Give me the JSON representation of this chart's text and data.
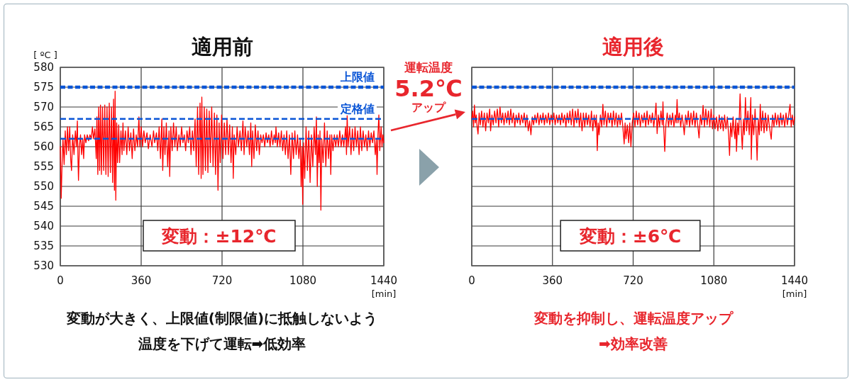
{
  "chart_data": [
    {
      "type": "line",
      "title": "適用前",
      "ylabel": "[ ºC ]",
      "xlabel": "[min]",
      "xlim": [
        0,
        1440
      ],
      "xticks": [
        0,
        360,
        720,
        1080,
        1440
      ],
      "ylim": [
        530,
        580
      ],
      "yticks": [
        530,
        535,
        540,
        545,
        550,
        555,
        560,
        565,
        570,
        575,
        580
      ],
      "grid": true,
      "color": "#ff0000",
      "x": [
        0,
        4,
        8,
        12,
        17,
        22,
        27,
        32,
        37,
        42,
        46,
        50,
        55,
        61,
        67,
        72,
        76,
        79,
        81,
        85,
        90,
        95,
        100,
        104,
        108,
        114,
        120,
        126,
        132,
        138,
        143,
        148,
        154,
        160,
        163,
        167,
        171,
        175,
        179,
        183,
        188,
        193,
        198,
        203,
        208,
        213,
        218,
        223,
        228,
        233,
        237,
        241,
        244,
        247,
        251,
        255,
        260,
        264,
        270,
        275,
        279,
        283,
        290,
        296,
        302,
        308,
        314,
        320,
        326,
        332,
        338,
        344,
        350,
        354,
        360,
        366,
        372,
        378,
        386,
        392,
        400,
        408,
        415,
        420,
        428,
        434,
        440,
        446,
        452,
        456,
        461,
        466,
        472,
        478,
        484,
        487,
        492,
        498,
        504,
        510,
        516,
        521,
        528,
        534,
        540,
        546,
        552,
        558,
        564,
        570,
        576,
        582,
        588,
        594,
        600,
        605,
        611,
        616,
        622,
        627,
        630,
        635,
        641,
        646,
        652,
        657,
        663,
        668,
        674,
        680,
        686,
        691,
        697,
        702,
        707,
        712,
        718,
        724,
        730,
        736,
        742,
        748,
        754,
        760,
        766,
        770,
        774,
        781,
        787,
        793,
        800,
        806,
        813,
        818,
        823,
        830,
        836,
        842,
        848,
        852,
        856,
        862,
        868,
        874,
        880,
        886,
        892,
        898,
        904,
        910,
        916,
        922,
        928,
        934,
        940,
        946,
        952,
        957,
        960,
        966,
        972,
        978,
        984,
        990,
        996,
        1002,
        1008,
        1014,
        1020,
        1026,
        1032,
        1038,
        1044,
        1050,
        1056,
        1062,
        1068,
        1072,
        1076,
        1079,
        1083,
        1088,
        1094,
        1100,
        1106,
        1112,
        1118,
        1124,
        1130,
        1136,
        1140,
        1144,
        1148,
        1152,
        1156,
        1160,
        1164,
        1170,
        1176,
        1182,
        1188,
        1194,
        1200,
        1204,
        1208,
        1214,
        1220,
        1226,
        1232,
        1238,
        1244,
        1250,
        1256,
        1262,
        1270,
        1274,
        1277,
        1281,
        1288,
        1294,
        1300,
        1306,
        1312,
        1318,
        1324,
        1330,
        1336,
        1342,
        1348,
        1354,
        1360,
        1366,
        1372,
        1378,
        1384,
        1390,
        1396,
        1402,
        1407,
        1410,
        1414,
        1418,
        1422,
        1428,
        1432,
        1436,
        1440
      ],
      "values": [
        560,
        547,
        556,
        562,
        555.5,
        564,
        558,
        565,
        559,
        565,
        557,
        554,
        563,
        558,
        564,
        560,
        566.5,
        556,
        551.5,
        560,
        563,
        558,
        562,
        557,
        563,
        561,
        563,
        561.5,
        563,
        562,
        565,
        562,
        564.5,
        557,
        567.5,
        553,
        570,
        554,
        570.5,
        553,
        570,
        554,
        570.5,
        553,
        570,
        552.5,
        571,
        553.5,
        570,
        551,
        572,
        549,
        574,
        546.5,
        566,
        556,
        565.5,
        556,
        564,
        558,
        566,
        559,
        564,
        558,
        565,
        559,
        563.5,
        557,
        564.5,
        559,
        563,
        560,
        567.5,
        560,
        565,
        560,
        564,
        561,
        563.5,
        559.5,
        563,
        560,
        564,
        561,
        563.5,
        559,
        565,
        557,
        567,
        554,
        565,
        558,
        566,
        555,
        564,
        552.5,
        565,
        559,
        566,
        560,
        565,
        559,
        563,
        560,
        565,
        561,
        563,
        559,
        564,
        561,
        565,
        558,
        564,
        559,
        567,
        555,
        570,
        553,
        571,
        552,
        572.5,
        553,
        570,
        554,
        569.5,
        553.5,
        569,
        556,
        570,
        555,
        568.5,
        553,
        568,
        549,
        566,
        556,
        568,
        557,
        566,
        558,
        567,
        558,
        565.5,
        556,
        565,
        552,
        563,
        558,
        565,
        560,
        564,
        559,
        566.5,
        558,
        565,
        560,
        564,
        558,
        566,
        555,
        564,
        557,
        565.5,
        559,
        564,
        558,
        563,
        561,
        563,
        560,
        563.5,
        561,
        563,
        560,
        564,
        560.5,
        563,
        561,
        565,
        560,
        563.5,
        560,
        564,
        559,
        563,
        558,
        564,
        557,
        563,
        553,
        563.5,
        557,
        564,
        558,
        563,
        557,
        562,
        550,
        560,
        545.5,
        561,
        552,
        565,
        554,
        564,
        551,
        563,
        555,
        565,
        558,
        567.5,
        550,
        563,
        556,
        564,
        544,
        562,
        556,
        566,
        555,
        564,
        557,
        563,
        553,
        563,
        559,
        563,
        560,
        563,
        560,
        564,
        560,
        563,
        560,
        565,
        558,
        568,
        560,
        565,
        558,
        564.5,
        559,
        565,
        560,
        564,
        558,
        565,
        559,
        564,
        560,
        563,
        559,
        564,
        560,
        563.5,
        561,
        564,
        558,
        562,
        553,
        563,
        568,
        559,
        565,
        560,
        563,
        561
      ],
      "ref_lines": [
        {
          "axis": "y",
          "value": 575,
          "label": "上限値",
          "color": "#0a55d6",
          "line_style": "dotted"
        },
        {
          "axis": "y",
          "value": 567,
          "label": "定格値",
          "color": "#0a55d6",
          "line_style": "dashed"
        },
        {
          "axis": "y",
          "value": 562,
          "color": "#0a55d6",
          "line_style": "dashed"
        }
      ],
      "annotations": [
        "変動：±12℃",
        "変動が大きく、上限値(制限値)に抵触しないよう",
        "温度を下げて運転➡低効率"
      ]
    },
    {
      "type": "line",
      "title": "適用後",
      "xlabel": "[min]",
      "xlim": [
        0,
        1440
      ],
      "xticks": [
        0,
        360,
        720,
        1080,
        1440
      ],
      "ylim": [
        530,
        580
      ],
      "yticks": [
        530,
        535,
        540,
        545,
        550,
        555,
        560,
        565,
        570,
        575,
        580
      ],
      "tick_labels": "x",
      "grid": true,
      "color": "#ff0000",
      "x": [
        0,
        4,
        8,
        12,
        16,
        20,
        24,
        28,
        33,
        38,
        44,
        50,
        56,
        62,
        68,
        74,
        80,
        84,
        90,
        96,
        102,
        108,
        114,
        120,
        126,
        132,
        138,
        144,
        150,
        156,
        162,
        168,
        174,
        180,
        186,
        192,
        198,
        204,
        210,
        216,
        222,
        228,
        234,
        240,
        246,
        252,
        258,
        264,
        270,
        276,
        282,
        288,
        294,
        300,
        306,
        312,
        318,
        324,
        330,
        336,
        342,
        348,
        354,
        360,
        366,
        372,
        378,
        384,
        390,
        396,
        402,
        408,
        414,
        420,
        426,
        432,
        438,
        444,
        450,
        456,
        462,
        468,
        474,
        480,
        486,
        492,
        498,
        504,
        510,
        516,
        522,
        528,
        534,
        540,
        546,
        552,
        556,
        560,
        564,
        568,
        574,
        580,
        585,
        590,
        596,
        602,
        608,
        614,
        620,
        626,
        632,
        638,
        644,
        650,
        656,
        662,
        668,
        674,
        680,
        684,
        688,
        694,
        700,
        705,
        710,
        716,
        722,
        728,
        734,
        740,
        746,
        752,
        758,
        764,
        770,
        776,
        782,
        788,
        794,
        800,
        806,
        812,
        818,
        822,
        827,
        832,
        838,
        844,
        850,
        853,
        857,
        861,
        866,
        872,
        878,
        884,
        890,
        896,
        902,
        908,
        912,
        916,
        920,
        926,
        932,
        938,
        944,
        948,
        954,
        960,
        966,
        972,
        978,
        984,
        990,
        996,
        1002,
        1008,
        1014,
        1020,
        1026,
        1032,
        1038,
        1044,
        1050,
        1056,
        1062,
        1068,
        1074,
        1080,
        1086,
        1092,
        1098,
        1104,
        1110,
        1116,
        1122,
        1128,
        1134,
        1140,
        1146,
        1150,
        1155,
        1160,
        1166,
        1170,
        1174,
        1178,
        1181,
        1186,
        1191,
        1197,
        1202,
        1207,
        1212,
        1216,
        1221,
        1226,
        1232,
        1238,
        1245,
        1247,
        1252,
        1258,
        1264,
        1270,
        1273,
        1278,
        1283,
        1287,
        1292,
        1298,
        1304,
        1310,
        1316,
        1322,
        1328,
        1336,
        1342,
        1348,
        1354,
        1360,
        1366,
        1372,
        1378,
        1384,
        1390,
        1396,
        1402,
        1408,
        1414,
        1420,
        1425,
        1430,
        1435,
        1440
      ],
      "values": [
        567,
        569,
        565,
        570.5,
        566,
        568,
        565,
        563.2,
        568.5,
        565.5,
        569,
        565,
        568.5,
        564,
        568.5,
        566,
        569.5,
        564,
        568,
        565.5,
        569,
        566,
        569.5,
        565,
        570,
        566,
        568.5,
        565.5,
        568.5,
        566,
        569,
        565.5,
        569.5,
        566,
        568.5,
        565,
        568,
        566,
        568.5,
        565.5,
        568,
        566,
        568.5,
        565,
        568,
        564,
        566.5,
        563,
        567.5,
        565.5,
        568,
        566,
        568.5,
        565.5,
        568,
        566,
        568.5,
        565.5,
        568,
        566,
        568.5,
        565.5,
        568,
        566,
        568.5,
        565.5,
        568,
        566,
        568,
        565.5,
        568.5,
        566,
        568,
        565,
        568.5,
        566,
        569,
        565.5,
        569.5,
        565,
        569,
        566,
        569.5,
        565,
        568.5,
        564,
        568.5,
        565,
        568.5,
        565.5,
        568,
        565,
        569,
        564,
        568,
        565,
        568,
        559,
        566,
        563,
        568,
        565,
        570.7,
        565.5,
        569,
        565,
        568.5,
        566,
        568.5,
        565,
        569,
        565.5,
        568.5,
        565,
        568,
        565.5,
        568.5,
        565,
        560.7,
        566,
        562,
        565.5,
        561,
        566,
        560,
        566,
        568.5,
        565,
        569,
        565.5,
        568.5,
        565,
        568,
        566,
        568.5,
        565,
        569,
        565.5,
        568,
        566,
        568.5,
        565,
        568,
        571,
        563.3,
        568,
        565,
        569,
        565.5,
        571.3,
        564,
        558.8,
        565.5,
        568.5,
        565,
        568,
        565.5,
        568.5,
        565,
        568,
        566,
        571.9,
        566,
        568.5,
        565,
        568,
        565.5,
        563,
        568,
        565.5,
        569,
        565,
        568.5,
        565.5,
        569,
        565,
        568.5,
        565.5,
        562.2,
        568,
        565.5,
        570.4,
        565,
        569.5,
        565.5,
        569,
        565,
        569.5,
        564.5,
        568,
        564.5,
        567.5,
        564,
        568,
        564.5,
        567.5,
        564,
        568,
        564.5,
        567.5,
        563,
        557.8,
        566,
        562.5,
        567.5,
        564,
        562,
        567,
        558.8,
        566,
        563,
        573.3,
        565,
        559.4,
        567,
        563,
        572.4,
        564,
        569,
        563,
        572.4,
        556.8,
        568,
        563,
        569.5,
        562,
        556.6,
        567,
        563,
        570.7,
        564,
        569,
        563.5,
        568.5,
        564,
        568,
        565,
        561.9,
        568,
        565,
        568.5,
        565.5,
        568,
        565,
        568.5,
        565.5,
        568,
        565,
        568.5,
        565.5,
        568,
        570.7,
        565,
        568,
        565.5,
        567.5
      ],
      "ref_lines": [
        {
          "axis": "y",
          "value": 575,
          "color": "#0a55d6",
          "line_style": "dotted"
        },
        {
          "axis": "y",
          "value": 567,
          "color": "#0a55d6",
          "line_style": "dashed"
        }
      ],
      "annotations": [
        "変動：±6℃",
        "変動を抑制し、運転温度アップ",
        "➡効率改善",
        "運転温度",
        "5.2℃",
        "アップ"
      ]
    }
  ]
}
